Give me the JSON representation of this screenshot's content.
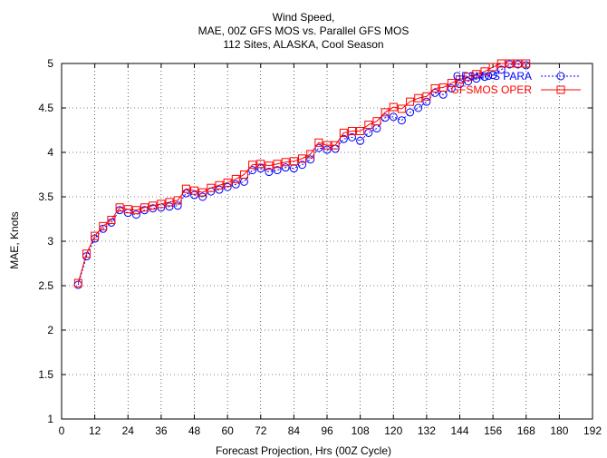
{
  "chart_data": {
    "type": "line",
    "title_lines": [
      "Wind Speed,",
      "MAE, 00Z GFS MOS vs. Parallel GFS MOS",
      "112 Sites, ALASKA, Cool Season"
    ],
    "xlabel": "Forecast Projection, Hrs (00Z Cycle)",
    "ylabel": "MAE, Knots",
    "xlim": [
      0,
      192
    ],
    "ylim": [
      1,
      5
    ],
    "x_ticks": [
      0,
      12,
      24,
      36,
      48,
      60,
      72,
      84,
      96,
      108,
      120,
      132,
      144,
      156,
      168,
      180,
      192
    ],
    "y_ticks": [
      1,
      1.5,
      2,
      2.5,
      3,
      3.5,
      4,
      4.5,
      5
    ],
    "grid": true,
    "legend_position": "top-right",
    "x": [
      6,
      9,
      12,
      15,
      18,
      21,
      24,
      27,
      30,
      33,
      36,
      39,
      42,
      45,
      48,
      51,
      54,
      57,
      60,
      63,
      66,
      69,
      72,
      75,
      78,
      81,
      84,
      87,
      90,
      93,
      96,
      99,
      102,
      105,
      108,
      111,
      114,
      117,
      120,
      123,
      126,
      129,
      132,
      135,
      138,
      141,
      144,
      147,
      150,
      153,
      156,
      159,
      162,
      165,
      168
    ],
    "series": [
      {
        "name": "GFSMOS PARA",
        "color": "#0000ff",
        "marker": "circle",
        "line_style": "dotted",
        "values": [
          2.51,
          2.83,
          3.03,
          3.14,
          3.21,
          3.35,
          3.32,
          3.3,
          3.35,
          3.37,
          3.38,
          3.39,
          3.4,
          3.54,
          3.52,
          3.5,
          3.56,
          3.58,
          3.61,
          3.64,
          3.67,
          3.8,
          3.82,
          3.78,
          3.8,
          3.83,
          3.82,
          3.86,
          3.92,
          4.05,
          4.03,
          4.04,
          4.15,
          4.17,
          4.13,
          4.22,
          4.27,
          4.39,
          4.4,
          4.36,
          4.45,
          4.5,
          4.57,
          4.67,
          4.65,
          4.72,
          4.77,
          4.8,
          4.83,
          4.85,
          4.87,
          4.93,
          4.99,
          4.99,
          4.98
        ]
      },
      {
        "name": "GFSMOS OPER",
        "color": "#ff0000",
        "marker": "square",
        "line_style": "solid",
        "values": [
          2.53,
          2.86,
          3.06,
          3.17,
          3.24,
          3.38,
          3.36,
          3.35,
          3.38,
          3.4,
          3.42,
          3.44,
          3.46,
          3.59,
          3.57,
          3.55,
          3.6,
          3.63,
          3.66,
          3.7,
          3.75,
          3.86,
          3.87,
          3.85,
          3.87,
          3.89,
          3.9,
          3.93,
          3.98,
          4.11,
          4.08,
          4.08,
          4.22,
          4.24,
          4.24,
          4.31,
          4.35,
          4.45,
          4.51,
          4.49,
          4.57,
          4.61,
          4.63,
          4.72,
          4.73,
          4.78,
          4.82,
          4.85,
          4.88,
          4.91,
          4.96,
          5.0,
          5.0,
          5.0,
          5.0
        ]
      }
    ]
  }
}
